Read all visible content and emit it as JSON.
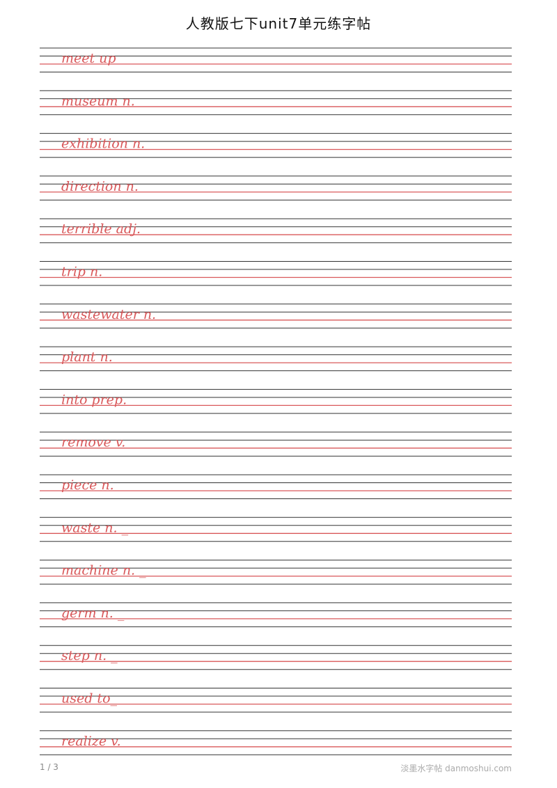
{
  "header": {
    "title": "人教版七下unit7单元练字帖"
  },
  "entries": [
    "meet up",
    "museum n.",
    "exhibition n.",
    "direction n.",
    "terrible adj.",
    "trip n.",
    "wastewater n.",
    "plant n.",
    "into prep.",
    "remove v.",
    "piece n.",
    "waste n. _",
    "machine n. _",
    "germ n. _",
    "step n. _",
    "used to_",
    "realize v."
  ],
  "footer": {
    "page": "1 / 3",
    "site": "淡墨水字帖 danmoshui.com"
  }
}
